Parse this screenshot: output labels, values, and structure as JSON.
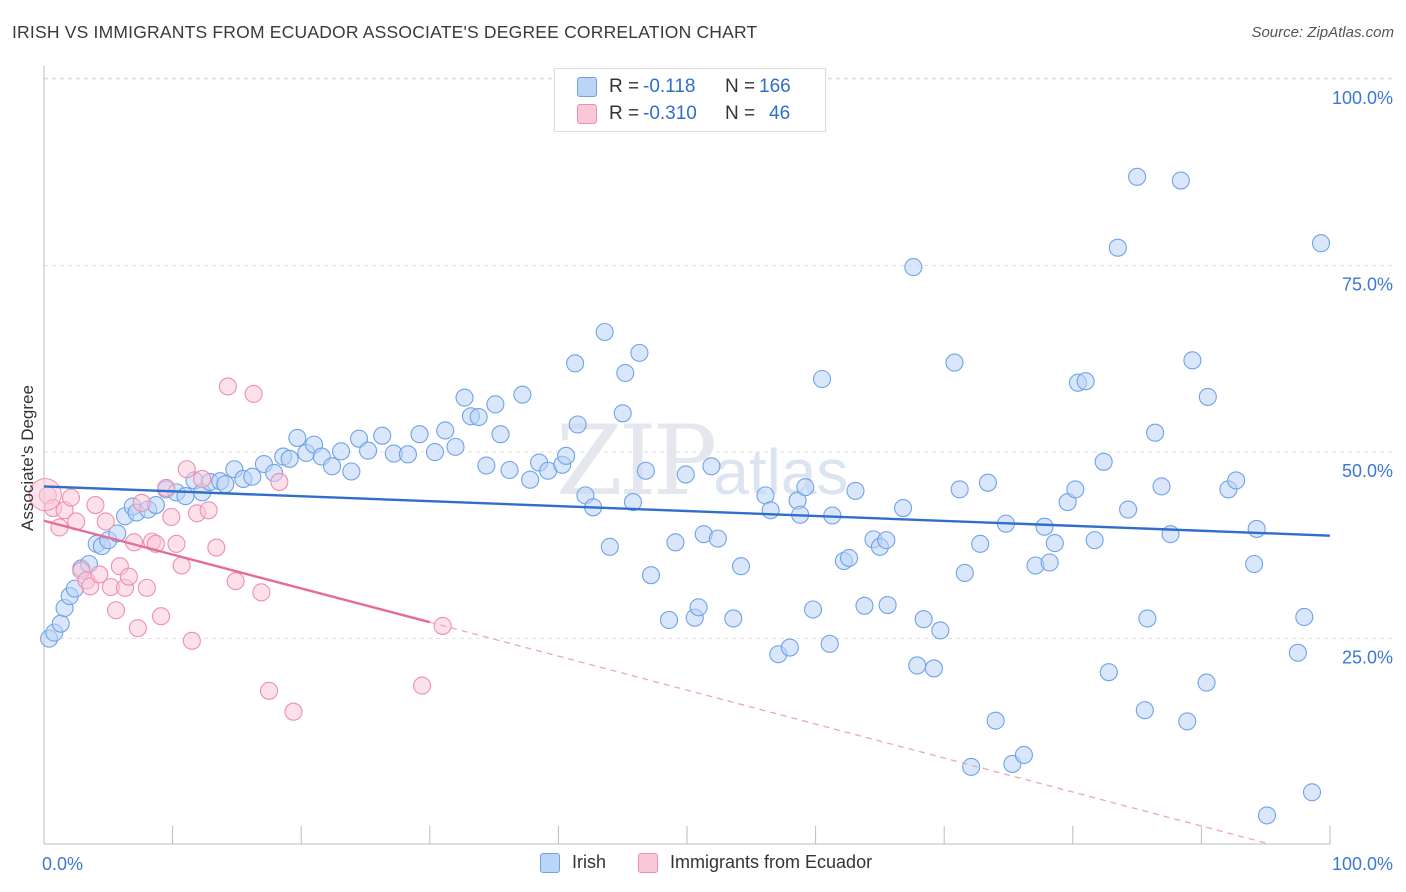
{
  "title": "IRISH VS IMMIGRANTS FROM ECUADOR ASSOCIATE'S DEGREE CORRELATION CHART",
  "source": "Source: ZipAtlas.com",
  "watermark": {
    "zip": "ZIP",
    "atlas": "atlas"
  },
  "legend": {
    "r_label": "R =",
    "n_label": "N =",
    "rows": [
      {
        "r": "-0.118",
        "n": "166",
        "color": "#6fa3e8",
        "fill": "#bcd4f5"
      },
      {
        "r": "-0.310",
        "n": "46",
        "color": "#ee8fb0",
        "fill": "#f9c7d8"
      }
    ]
  },
  "chart_data": {
    "type": "scatter",
    "ylabel": "Associate's Degree",
    "xlabel": "",
    "xlim": [
      0,
      100
    ],
    "ylim": [
      0,
      100
    ],
    "x_tick_labels": [
      "0.0%",
      "100.0%"
    ],
    "y_ticks": [
      25,
      50,
      75,
      100
    ],
    "y_tick_labels": [
      "25.0%",
      "50.0%",
      "75.0%",
      "100.0%"
    ],
    "grid": true,
    "series": [
      {
        "name": "Irish",
        "color": "#6fa3e8",
        "fill": "#bcd4f5",
        "trend": {
          "x": [
            0,
            100
          ],
          "y": [
            47.8,
            41.2
          ]
        },
        "points": [
          [
            0.4,
            27.4
          ],
          [
            0.8,
            28.2
          ],
          [
            1.3,
            29.4
          ],
          [
            1.6,
            31.5
          ],
          [
            2,
            33.1
          ],
          [
            2.4,
            34.1
          ],
          [
            2.9,
            36.8
          ],
          [
            3.5,
            37.4
          ],
          [
            4.1,
            40.1
          ],
          [
            4.5,
            39.8
          ],
          [
            5,
            40.6
          ],
          [
            5.7,
            41.5
          ],
          [
            6.3,
            43.8
          ],
          [
            6.9,
            45.1
          ],
          [
            7.2,
            44.3
          ],
          [
            8.1,
            44.7
          ],
          [
            8.7,
            45.3
          ],
          [
            9.5,
            47.4
          ],
          [
            10.3,
            47
          ],
          [
            11,
            46.5
          ],
          [
            11.7,
            48.6
          ],
          [
            12.3,
            47
          ],
          [
            12.9,
            48.4
          ],
          [
            13.7,
            48.5
          ],
          [
            14.1,
            48.1
          ],
          [
            14.8,
            50.1
          ],
          [
            15.5,
            48.8
          ],
          [
            16.2,
            49.1
          ],
          [
            17.1,
            50.8
          ],
          [
            17.9,
            49.6
          ],
          [
            18.6,
            51.8
          ],
          [
            19.1,
            51.5
          ],
          [
            19.7,
            54.3
          ],
          [
            20.4,
            52.3
          ],
          [
            21,
            53.4
          ],
          [
            21.6,
            51.8
          ],
          [
            22.4,
            50.5
          ],
          [
            23.1,
            52.5
          ],
          [
            23.9,
            49.8
          ],
          [
            24.5,
            54.2
          ],
          [
            25.2,
            52.6
          ],
          [
            26.3,
            54.6
          ],
          [
            27.2,
            52.2
          ],
          [
            28.3,
            52.1
          ],
          [
            29.2,
            54.8
          ],
          [
            30.4,
            52.4
          ],
          [
            31.2,
            55.3
          ],
          [
            32,
            53.1
          ],
          [
            32.7,
            59.7
          ],
          [
            33.2,
            57.2
          ],
          [
            33.8,
            57.1
          ],
          [
            34.4,
            50.6
          ],
          [
            35.1,
            58.8
          ],
          [
            35.5,
            54.8
          ],
          [
            36.2,
            50
          ],
          [
            37.2,
            60.1
          ],
          [
            37.8,
            48.7
          ],
          [
            38.5,
            51
          ],
          [
            39.2,
            49.9
          ],
          [
            40.3,
            50.7
          ],
          [
            40.6,
            51.9
          ],
          [
            41.5,
            56.1
          ],
          [
            41.3,
            64.3
          ],
          [
            42.1,
            46.6
          ],
          [
            42.7,
            45
          ],
          [
            43.6,
            68.5
          ],
          [
            44,
            39.7
          ],
          [
            45,
            57.6
          ],
          [
            45.2,
            63
          ],
          [
            45.8,
            45.7
          ],
          [
            46.3,
            65.7
          ],
          [
            46.8,
            49.9
          ],
          [
            47.2,
            35.9
          ],
          [
            48.6,
            29.9
          ],
          [
            49.1,
            40.3
          ],
          [
            49.9,
            49.4
          ],
          [
            50.6,
            30.2
          ],
          [
            50.9,
            31.6
          ],
          [
            51.3,
            41.4
          ],
          [
            51.9,
            50.5
          ],
          [
            52.4,
            40.8
          ],
          [
            53.6,
            30.1
          ],
          [
            54.2,
            37.1
          ],
          [
            56.1,
            46.6
          ],
          [
            56.5,
            44.6
          ],
          [
            57.1,
            25.3
          ],
          [
            58,
            26.2
          ],
          [
            58.6,
            45.9
          ],
          [
            58.8,
            44
          ],
          [
            59.2,
            47.7
          ],
          [
            59.8,
            31.3
          ],
          [
            60.5,
            62.2
          ],
          [
            61.1,
            26.7
          ],
          [
            61.3,
            43.9
          ],
          [
            62.2,
            37.8
          ],
          [
            62.6,
            38.2
          ],
          [
            63.1,
            47.2
          ],
          [
            63.8,
            31.8
          ],
          [
            64.5,
            40.7
          ],
          [
            65,
            39.7
          ],
          [
            65.5,
            40.6
          ],
          [
            65.6,
            31.9
          ],
          [
            66.8,
            44.9
          ],
          [
            67.6,
            77.2
          ],
          [
            67.9,
            23.8
          ],
          [
            68.4,
            30
          ],
          [
            69.2,
            23.4
          ],
          [
            69.7,
            28.5
          ],
          [
            70.8,
            64.4
          ],
          [
            71.2,
            47.4
          ],
          [
            71.6,
            36.2
          ],
          [
            72.1,
            10.2
          ],
          [
            72.8,
            40.1
          ],
          [
            73.4,
            48.3
          ],
          [
            74,
            16.4
          ],
          [
            74.8,
            42.8
          ],
          [
            75.3,
            10.6
          ],
          [
            76.2,
            11.8
          ],
          [
            77.1,
            37.2
          ],
          [
            77.8,
            42.4
          ],
          [
            78.2,
            37.6
          ],
          [
            78.6,
            40.2
          ],
          [
            79.6,
            45.7
          ],
          [
            80.2,
            47.4
          ],
          [
            80.4,
            61.7
          ],
          [
            81,
            61.9
          ],
          [
            81.7,
            40.6
          ],
          [
            82.4,
            51.1
          ],
          [
            82.8,
            22.9
          ],
          [
            83.5,
            79.8
          ],
          [
            84.3,
            44.7
          ],
          [
            85,
            89.3
          ],
          [
            85.6,
            17.8
          ],
          [
            85.8,
            30.1
          ],
          [
            86.4,
            55
          ],
          [
            86.9,
            47.8
          ],
          [
            87.6,
            41.4
          ],
          [
            88.4,
            88.8
          ],
          [
            88.9,
            16.3
          ],
          [
            89.3,
            64.7
          ],
          [
            90.4,
            21.5
          ],
          [
            90.5,
            59.8
          ],
          [
            92.1,
            47.4
          ],
          [
            92.7,
            48.6
          ],
          [
            94.1,
            37.4
          ],
          [
            94.3,
            42.1
          ],
          [
            95.1,
            3.7
          ],
          [
            97.5,
            25.5
          ],
          [
            98,
            30.3
          ],
          [
            98.6,
            6.8
          ],
          [
            99.3,
            80.4
          ]
        ]
      },
      {
        "name": "Immigrants from Ecuador",
        "color": "#ee8fb0",
        "fill": "#f9c7d8",
        "trend": {
          "x": [
            0,
            30
          ],
          "y": [
            43.2,
            29.6
          ]
        },
        "trend_dashed": {
          "x": [
            30,
            95
          ],
          "y": [
            29.6,
            0
          ]
        },
        "points": [
          [
            0.3,
            46.6
          ],
          [
            0.7,
            44.9
          ],
          [
            1.2,
            42.3
          ],
          [
            1.6,
            44.6
          ],
          [
            2.1,
            46.3
          ],
          [
            2.5,
            43.1
          ],
          [
            2.9,
            36.5
          ],
          [
            3.3,
            35.2
          ],
          [
            3.6,
            34.4
          ],
          [
            4,
            45.3
          ],
          [
            4.3,
            36
          ],
          [
            4.8,
            43.1
          ],
          [
            5.2,
            34.3
          ],
          [
            5.6,
            31.2
          ],
          [
            5.9,
            37.1
          ],
          [
            6.3,
            34.2
          ],
          [
            6.6,
            35.7
          ],
          [
            7,
            40.3
          ],
          [
            7.3,
            28.8
          ],
          [
            7.6,
            45.6
          ],
          [
            8,
            34.2
          ],
          [
            8.4,
            40.4
          ],
          [
            8.7,
            40.1
          ],
          [
            9.1,
            30.4
          ],
          [
            9.5,
            47.6
          ],
          [
            9.9,
            43.7
          ],
          [
            10.3,
            40.1
          ],
          [
            10.7,
            37.2
          ],
          [
            11.1,
            50.1
          ],
          [
            11.5,
            27.1
          ],
          [
            11.9,
            44.2
          ],
          [
            12.3,
            48.8
          ],
          [
            12.8,
            44.6
          ],
          [
            13.4,
            39.6
          ],
          [
            14.3,
            61.2
          ],
          [
            14.9,
            35.1
          ],
          [
            16.3,
            60.2
          ],
          [
            16.9,
            33.6
          ],
          [
            17.5,
            20.4
          ],
          [
            18.3,
            48.4
          ],
          [
            19.4,
            17.6
          ],
          [
            29.4,
            21.1
          ],
          [
            31,
            29.1
          ]
        ]
      }
    ]
  }
}
